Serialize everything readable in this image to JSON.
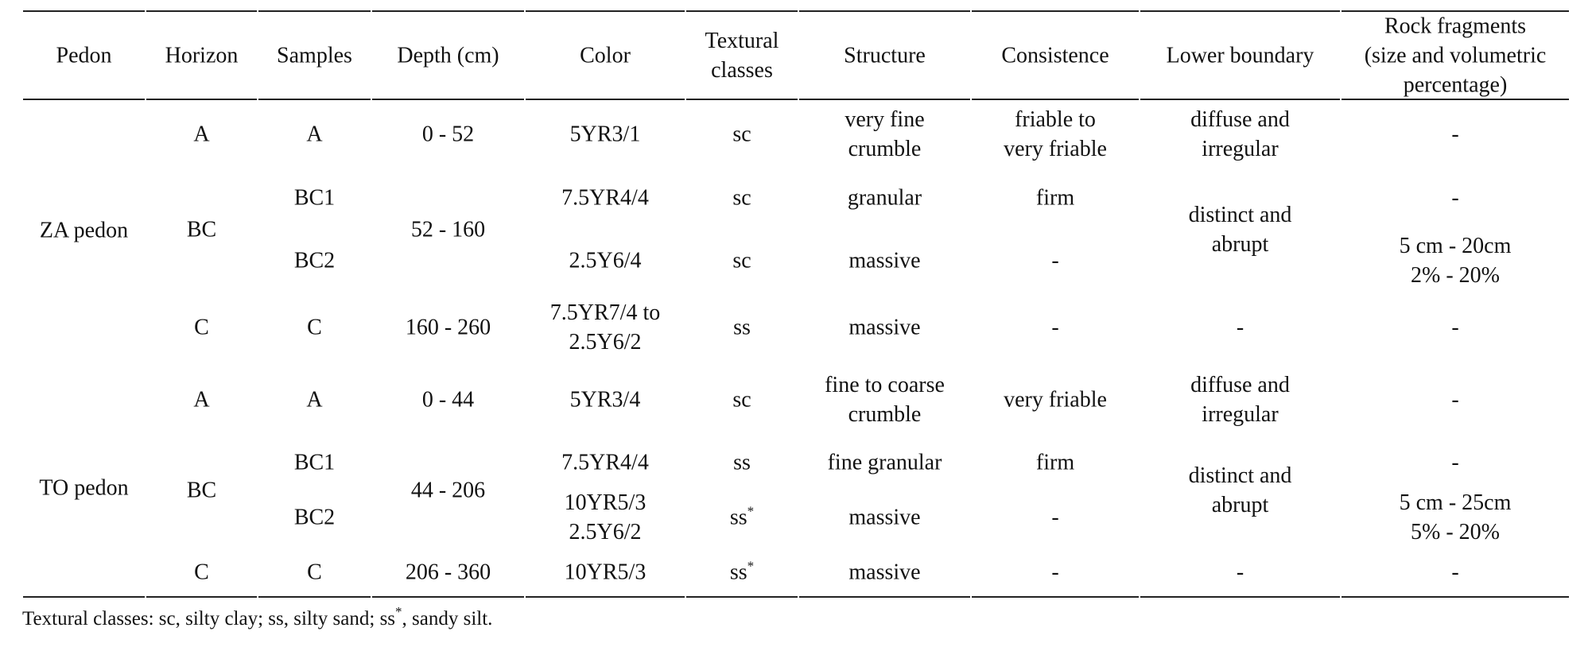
{
  "table": {
    "header": [
      "Pedon",
      "Horizon",
      "Samples",
      "Depth (cm)",
      "Color",
      [
        "Textural",
        "classes"
      ],
      "Structure",
      "Consistence",
      "Lower boundary",
      [
        "Rock fragments",
        "(size and volumetric",
        "percentage)"
      ]
    ],
    "pedons": [
      {
        "name": "ZA pedon",
        "horizons": [
          {
            "name": "A",
            "depth": "0 - 52",
            "boundary": [
              "diffuse and",
              "irregular"
            ],
            "samples": [
              {
                "name": "A",
                "color": "5YR3/1",
                "texture": "sc",
                "structure": [
                  "very fine",
                  "crumble"
                ],
                "consistence": [
                  "friable to",
                  "very friable"
                ],
                "rock": "-"
              }
            ]
          },
          {
            "name": "BC",
            "depth": "52 - 160",
            "boundary": [
              "distinct and",
              "abrupt"
            ],
            "samples": [
              {
                "name": "BC1",
                "color": "7.5YR4/4",
                "texture": "sc",
                "structure": "granular",
                "consistence": "firm",
                "rock": "-"
              },
              {
                "name": "BC2",
                "color": "2.5Y6/4",
                "texture": "sc",
                "structure": "massive",
                "consistence": "-",
                "rock": [
                  "5 cm - 20cm",
                  "2% - 20%"
                ]
              }
            ]
          },
          {
            "name": "C",
            "depth": "160 - 260",
            "boundary": "-",
            "samples": [
              {
                "name": "C",
                "color": [
                  "7.5YR7/4 to",
                  "2.5Y6/2"
                ],
                "texture": "ss",
                "structure": "massive",
                "consistence": "-",
                "rock": "-"
              }
            ]
          }
        ]
      },
      {
        "name": "TO pedon",
        "horizons": [
          {
            "name": "A",
            "depth": "0 - 44",
            "boundary": [
              "diffuse and",
              "irregular"
            ],
            "samples": [
              {
                "name": "A",
                "color": "5YR3/4",
                "texture": "sc",
                "structure": [
                  "fine to coarse",
                  "crumble"
                ],
                "consistence": "very friable",
                "rock": "-"
              }
            ]
          },
          {
            "name": "BC",
            "depth": "44 - 206",
            "boundary": [
              "distinct and",
              "abrupt"
            ],
            "samples": [
              {
                "name": "BC1",
                "color": "7.5YR4/4",
                "texture": "ss",
                "structure": "fine granular",
                "consistence": "firm",
                "rock": "-"
              },
              {
                "name": "BC2",
                "color": [
                  "10YR5/3",
                  "2.5Y6/2"
                ],
                "texture": {
                  "base": "ss",
                  "sup": "*"
                },
                "structure": "massive",
                "consistence": "-",
                "rock": [
                  "5 cm - 25cm",
                  "5% - 20%"
                ]
              }
            ]
          },
          {
            "name": "C",
            "depth": "206 - 360",
            "boundary": "-",
            "samples": [
              {
                "name": "C",
                "color": "10YR5/3",
                "texture": {
                  "base": "ss",
                  "sup": "*"
                },
                "structure": "massive",
                "consistence": "-",
                "rock": "-"
              }
            ]
          }
        ]
      }
    ]
  },
  "footnote": {
    "text": "Textural classes: sc, silty clay; ss, silty sand; ss",
    "sup": "*",
    "rest": ", sandy silt."
  }
}
